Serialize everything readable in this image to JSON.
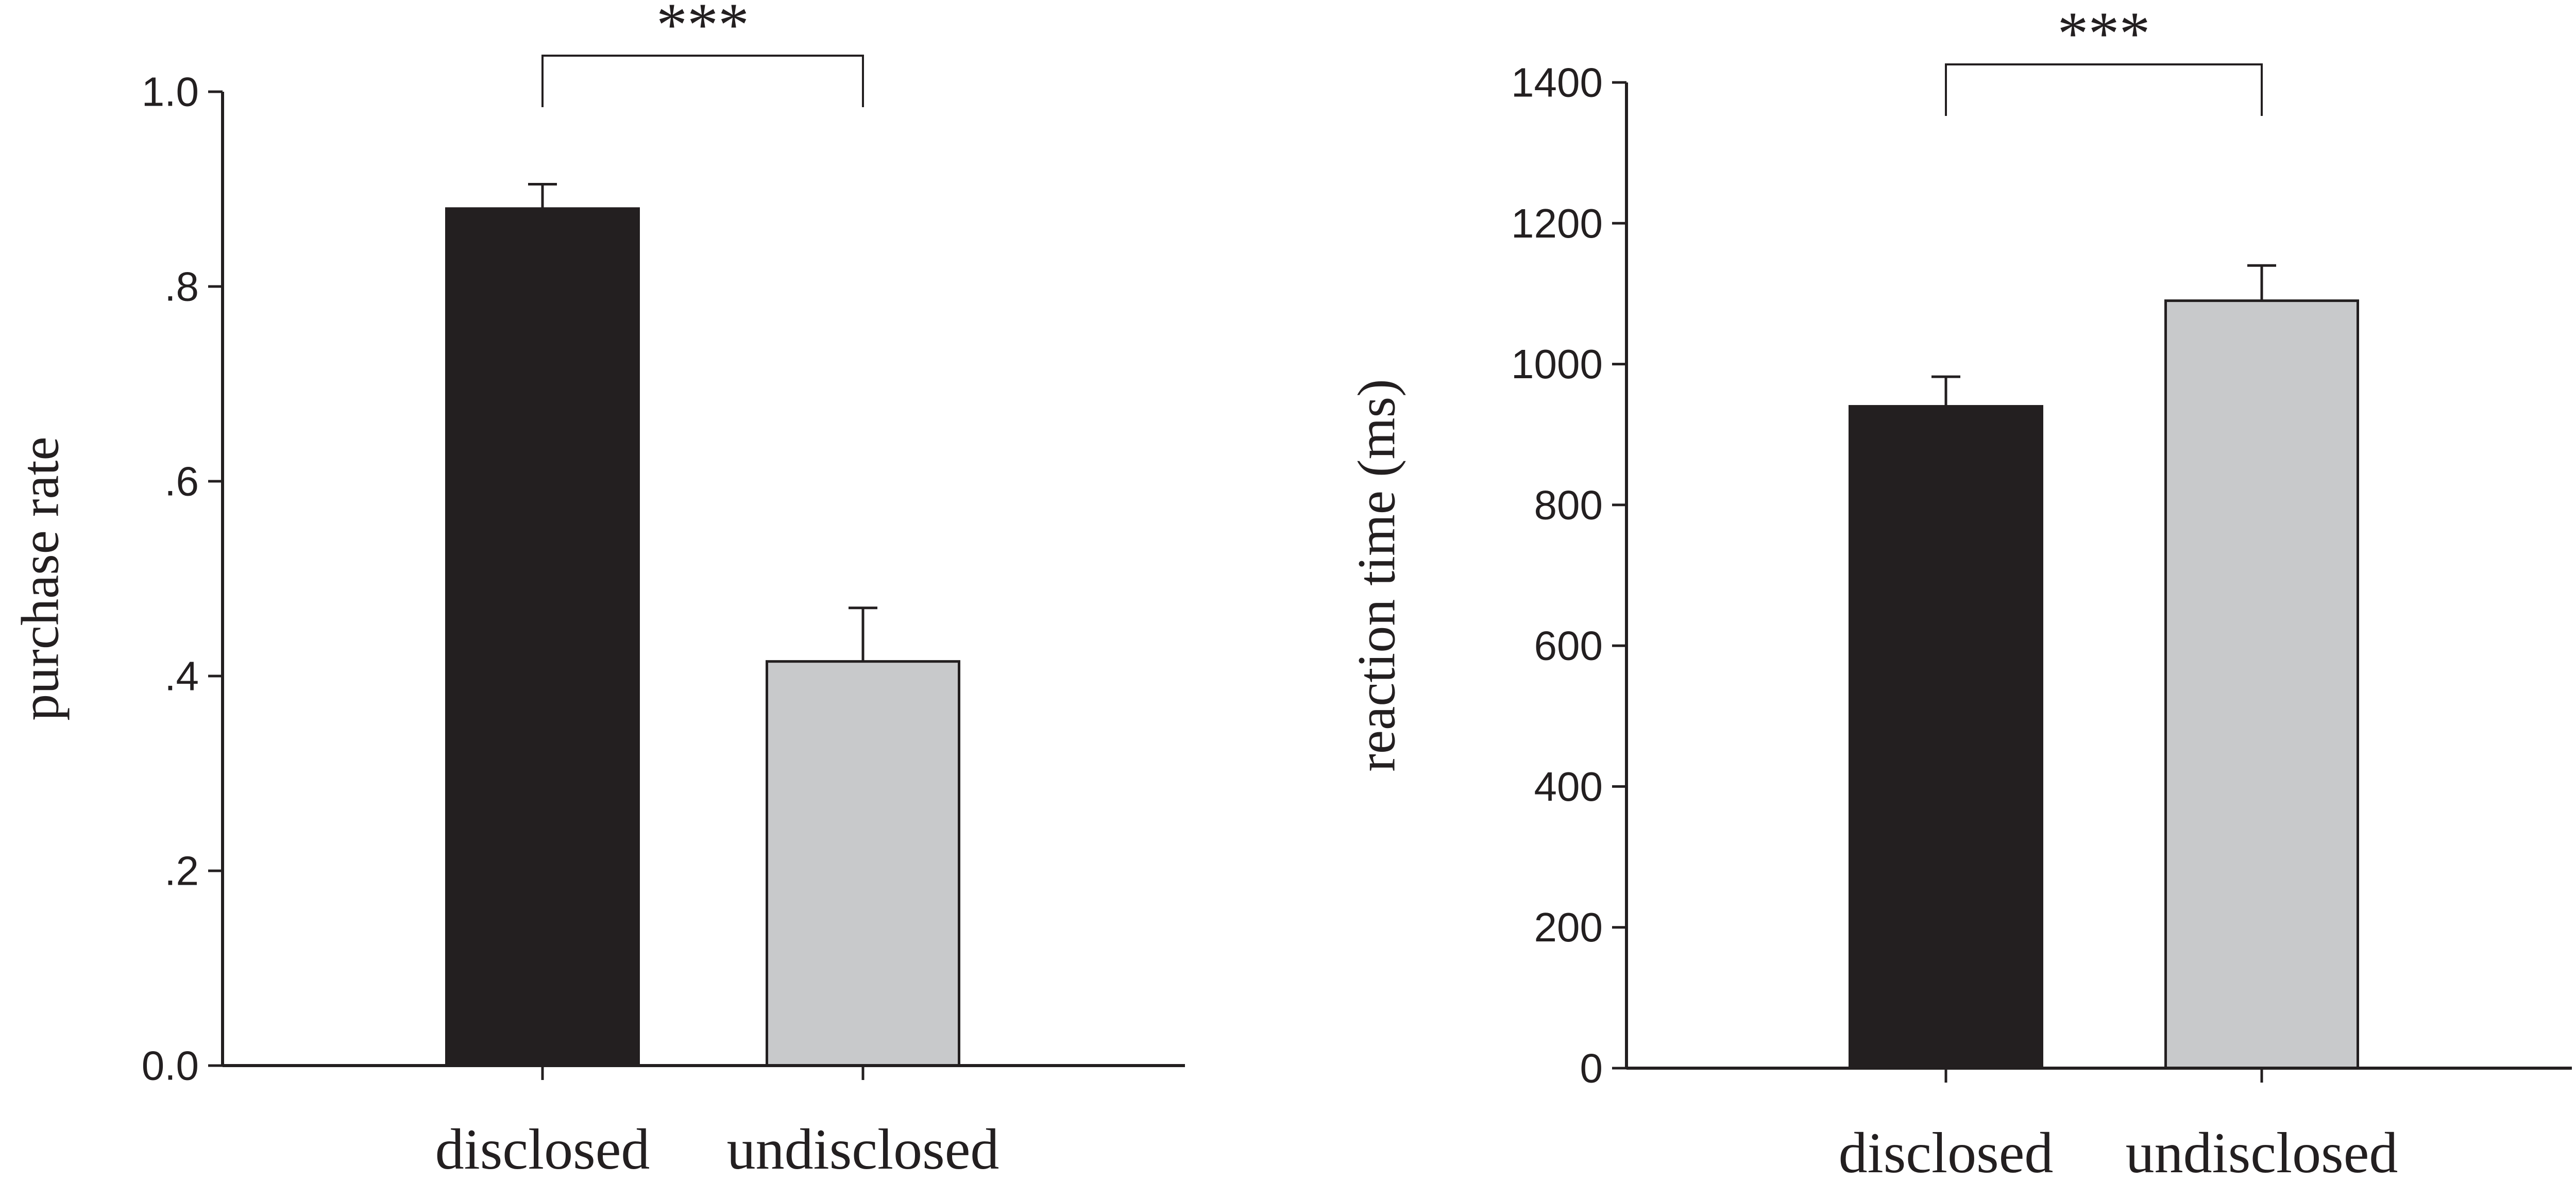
{
  "chart_data": [
    {
      "type": "bar",
      "categories": [
        "disclosed",
        "undisclosed"
      ],
      "values": [
        0.88,
        0.415
      ],
      "errors": [
        0.025,
        0.055
      ],
      "ylabel": "purchase rate",
      "ylim": [
        0,
        1.0
      ],
      "yticks": [
        0,
        0.2,
        0.4,
        0.6,
        0.8,
        1.0
      ],
      "ytick_labels": [
        "0.0",
        ".2",
        ".4",
        ".6",
        ".8",
        "1.0"
      ],
      "significance": {
        "label": "***",
        "between": [
          0,
          1
        ]
      },
      "colors": [
        "#231f20",
        "#c8c9cb"
      ],
      "grid": false
    },
    {
      "type": "bar",
      "categories": [
        "disclosed",
        "undisclosed"
      ],
      "values": [
        940,
        1090
      ],
      "errors": [
        42,
        50
      ],
      "ylabel": "reaction time (ms)",
      "ylim": [
        0,
        1400
      ],
      "yticks": [
        0,
        200,
        400,
        600,
        800,
        1000,
        1200,
        1400
      ],
      "ytick_labels": [
        "0",
        "200",
        "400",
        "600",
        "800",
        "1000",
        "1200",
        "1400"
      ],
      "significance": {
        "label": "***",
        "between": [
          0,
          1
        ]
      },
      "colors": [
        "#231f20",
        "#c8c9cb"
      ],
      "grid": false
    }
  ]
}
